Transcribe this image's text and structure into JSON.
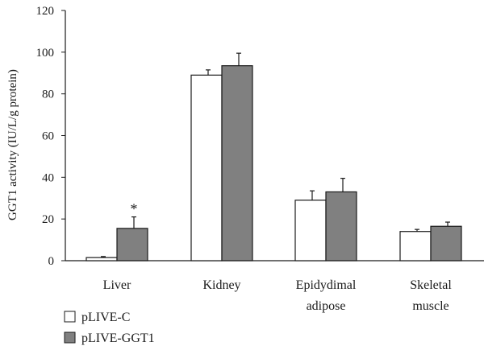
{
  "chart_data": {
    "type": "bar",
    "ylabel": "GGT1 activity (IU/L/g protein)",
    "ylim": [
      0,
      120
    ],
    "yticks": [
      "0",
      "20",
      "40",
      "60",
      "80",
      "100",
      "120"
    ],
    "categories": [
      [
        "Liver"
      ],
      [
        "Kidney"
      ],
      [
        "Epidydimal",
        "adipose"
      ],
      [
        "Skeletal",
        "muscle"
      ]
    ],
    "series": [
      {
        "name": "pLIVE-C",
        "color": "#ffffff",
        "values": [
          1.5,
          89,
          29,
          14
        ],
        "errors": [
          0.5,
          2.5,
          4.5,
          1
        ]
      },
      {
        "name": "pLIVE-GGT1",
        "color": "#808080",
        "values": [
          15.5,
          93.5,
          33,
          16.5
        ],
        "errors": [
          5.5,
          6,
          6.5,
          2
        ]
      }
    ],
    "annotations": [
      {
        "category": 0,
        "series": 1,
        "text": "*"
      }
    ],
    "grid": false,
    "legend_position": "bottom-left"
  }
}
